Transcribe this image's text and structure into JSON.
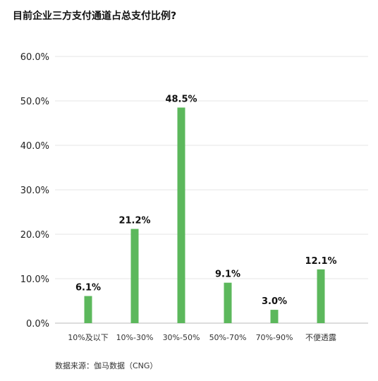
{
  "title": "目前企业三方支付通道占总支付比例?",
  "source": "数据来源：伽马数据（CNG）",
  "colors": {
    "bar": "#5cb85c",
    "grid": "#e6e6e6",
    "axis": "#bbbbbb"
  },
  "chart_data": {
    "type": "bar",
    "title": "目前企业三方支付通道占总支付比例?",
    "categories": [
      "10%及以下",
      "10%-30%",
      "30%-50%",
      "50%-70%",
      "70%-90%",
      "不便透露"
    ],
    "values": [
      6.1,
      21.2,
      48.5,
      9.1,
      3.0,
      12.1
    ],
    "data_labels": [
      "6.1%",
      "21.2%",
      "48.5%",
      "9.1%",
      "3.0%",
      "12.1%"
    ],
    "yticks": [
      "0.0%",
      "10.0%",
      "20.0%",
      "30.0%",
      "40.0%",
      "50.0%",
      "60.0%"
    ],
    "ytick_values": [
      0,
      10,
      20,
      30,
      40,
      50,
      60
    ],
    "ylim": [
      0,
      60
    ],
    "grid": true,
    "legend": "none"
  }
}
